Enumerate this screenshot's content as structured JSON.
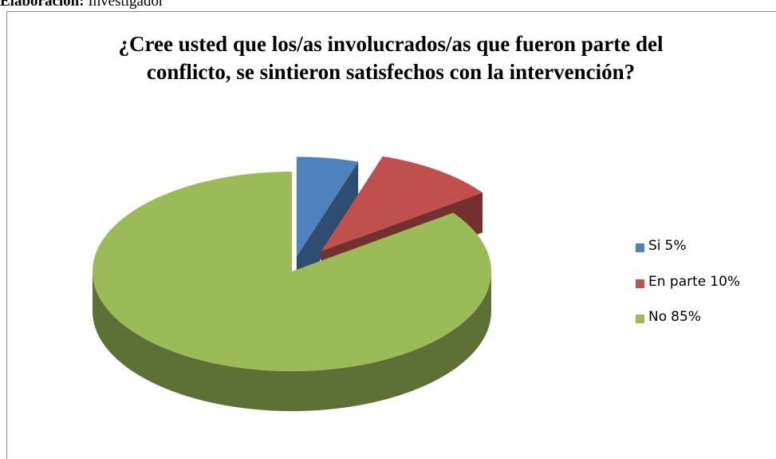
{
  "source": {
    "label": "Elaboración:",
    "text": "Investigador"
  },
  "chart_data": {
    "type": "pie3d",
    "title": "¿Cree usted que los/as involucrados/as que fueron parte del conflicto, se sintieron satisfechos con la intervención?",
    "categories": [
      "Si",
      "En parte",
      "No"
    ],
    "values": [
      5,
      10,
      85
    ],
    "value_labels": [
      "5%",
      "10%",
      "85%"
    ],
    "colors": [
      "#4f81bd",
      "#c0504d",
      "#9bbb59"
    ],
    "legend": "right"
  }
}
